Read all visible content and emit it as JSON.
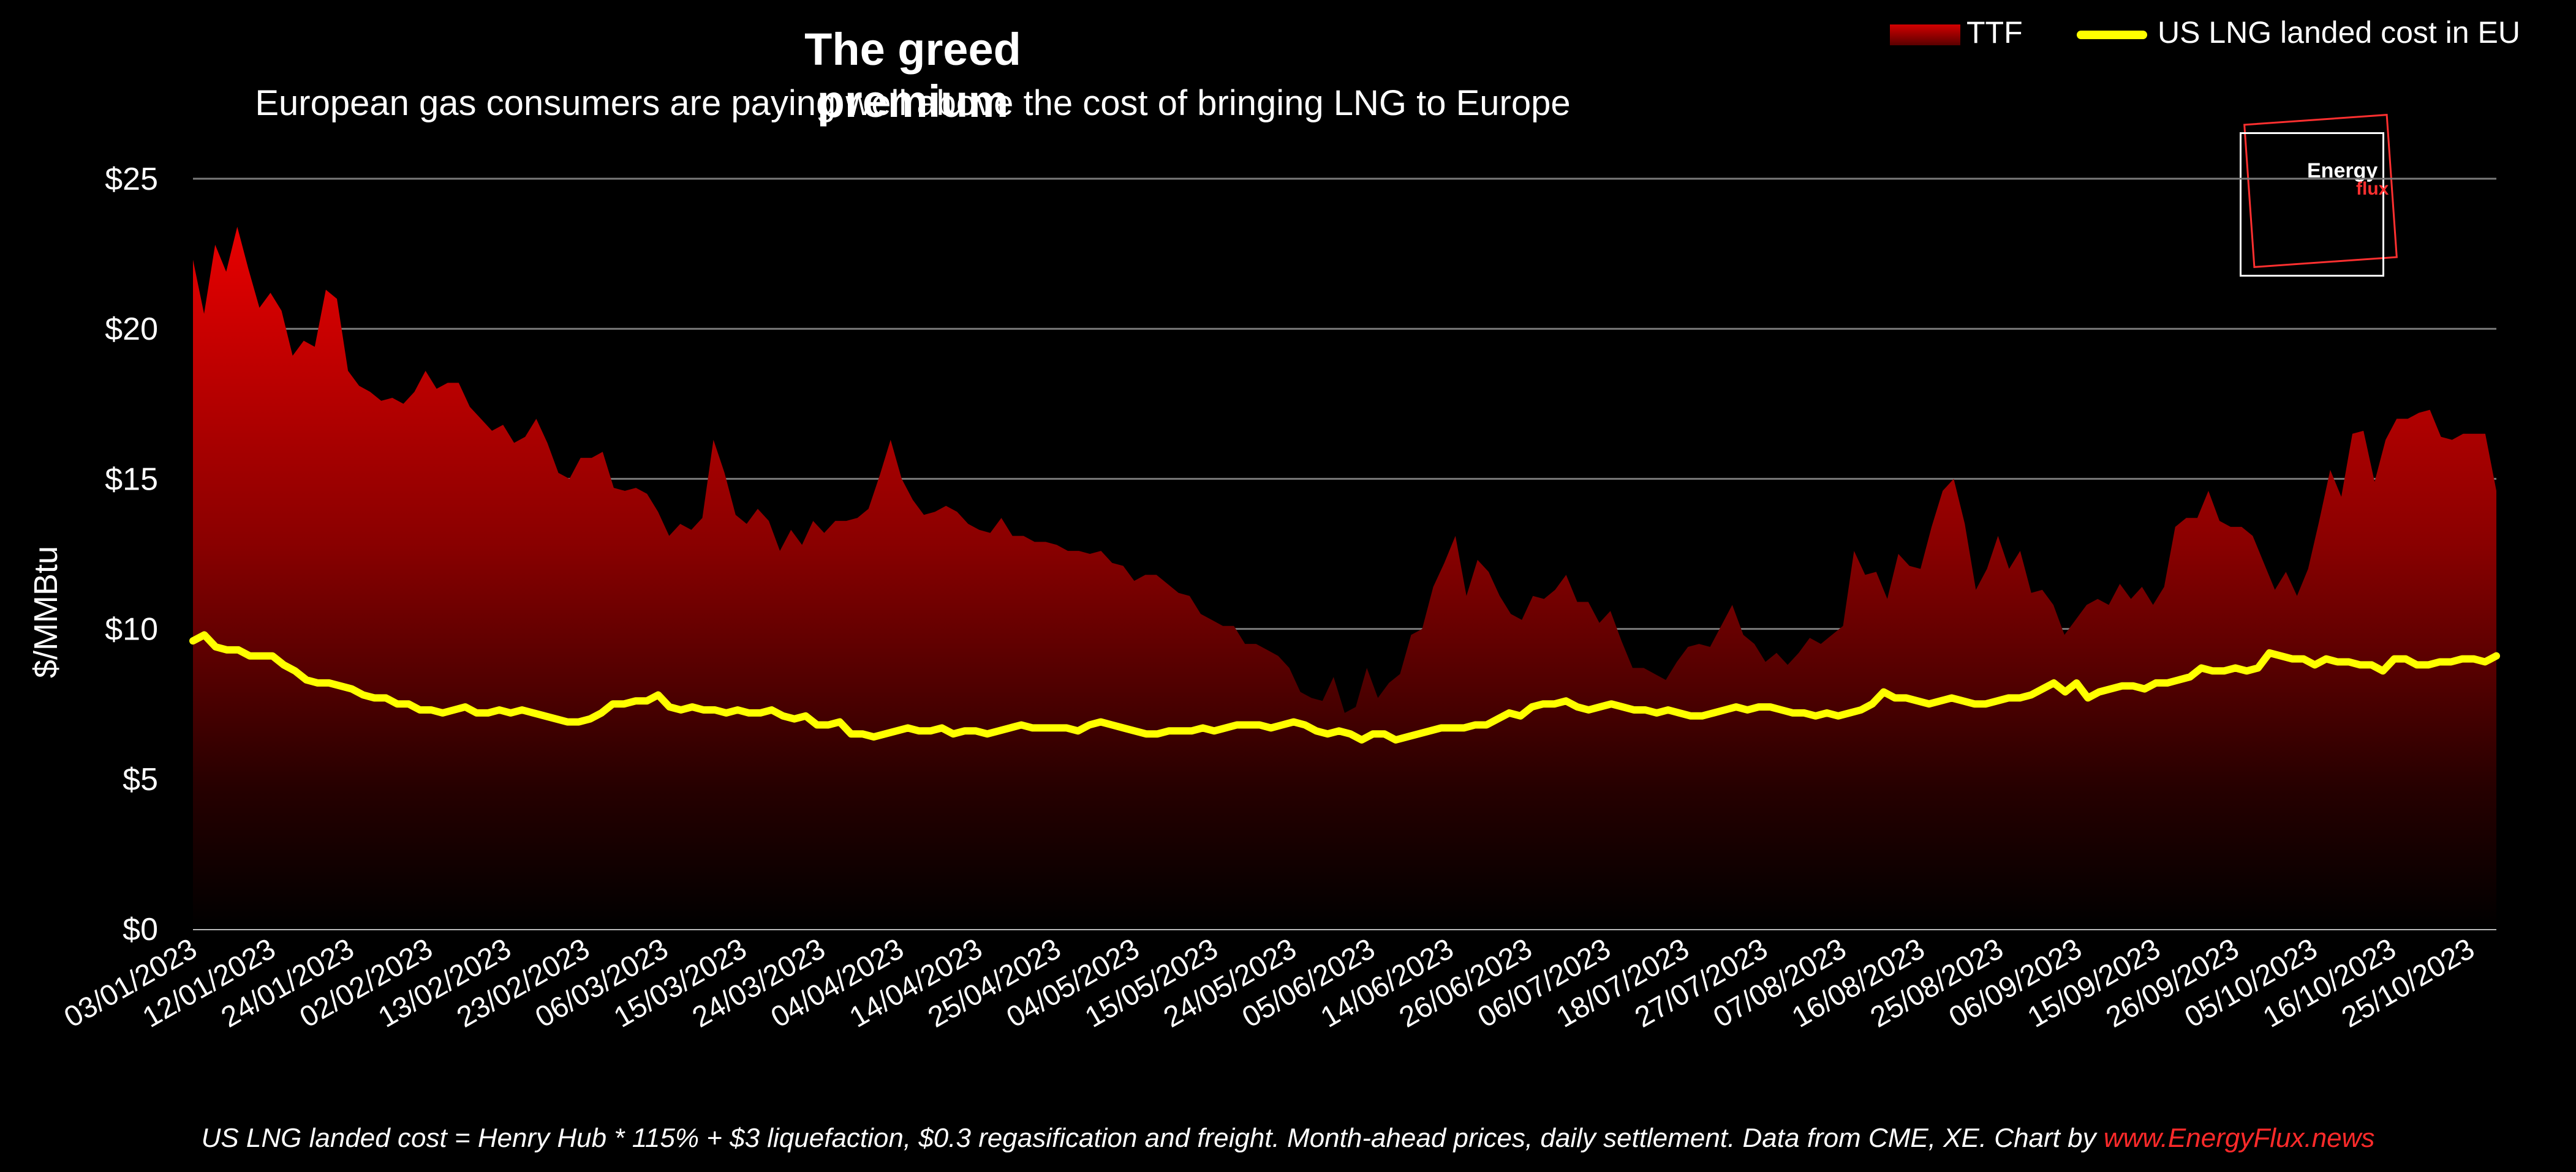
{
  "chart_data": {
    "type": "area",
    "title": "The greed premium",
    "subtitle": "European gas consumers are paying well above the cost of bringing LNG to Europe",
    "ylabel": "$/MMBtu",
    "xlabel": "",
    "ylim": [
      0,
      25
    ],
    "yticks": [
      0,
      5,
      10,
      15,
      20,
      25
    ],
    "ytick_labels": [
      "$0",
      "$5",
      "$10",
      "$15",
      "$20",
      "$25"
    ],
    "grid": true,
    "legend_position": "top-right",
    "x_tick_labels": [
      "03/01/2023",
      "12/01/2023",
      "24/01/2023",
      "02/02/2023",
      "13/02/2023",
      "23/02/2023",
      "06/03/2023",
      "15/03/2023",
      "24/03/2023",
      "04/04/2023",
      "14/04/2023",
      "25/04/2023",
      "04/05/2023",
      "15/05/2023",
      "24/05/2023",
      "05/06/2023",
      "14/06/2023",
      "26/06/2023",
      "06/07/2023",
      "18/07/2023",
      "27/07/2023",
      "07/08/2023",
      "16/08/2023",
      "25/08/2023",
      "06/09/2023",
      "15/09/2023",
      "26/09/2023",
      "05/10/2023",
      "16/10/2023",
      "25/10/2023"
    ],
    "series": [
      {
        "name": "TTF",
        "style": "area",
        "color_top": "#e00000",
        "color_bottom": "#000000",
        "values": [
          22.3,
          20.5,
          22.8,
          21.9,
          23.4,
          22.0,
          20.7,
          21.2,
          20.6,
          19.1,
          19.6,
          19.4,
          21.3,
          21.0,
          18.6,
          18.1,
          17.9,
          17.6,
          17.7,
          17.5,
          17.9,
          18.6,
          18.0,
          18.2,
          18.2,
          17.4,
          17.0,
          16.6,
          16.8,
          16.2,
          16.4,
          17.0,
          16.2,
          15.2,
          15.0,
          15.7,
          15.7,
          15.9,
          14.7,
          14.6,
          14.7,
          14.5,
          13.9,
          13.1,
          13.5,
          13.3,
          13.7,
          16.3,
          15.2,
          13.8,
          13.5,
          14.0,
          13.6,
          12.6,
          13.3,
          12.8,
          13.6,
          13.2,
          13.6,
          13.6,
          13.7,
          14.0,
          15.1,
          16.3,
          15.0,
          14.3,
          13.8,
          13.9,
          14.1,
          13.9,
          13.5,
          13.3,
          13.2,
          13.7,
          13.1,
          13.1,
          12.9,
          12.9,
          12.8,
          12.6,
          12.6,
          12.5,
          12.6,
          12.2,
          12.1,
          11.6,
          11.8,
          11.8,
          11.5,
          11.2,
          11.1,
          10.5,
          10.3,
          10.1,
          10.1,
          9.5,
          9.5,
          9.3,
          9.1,
          8.7,
          7.9,
          7.7,
          7.6,
          8.4,
          7.2,
          7.4,
          8.7,
          7.7,
          8.2,
          8.5,
          9.8,
          10.0,
          11.4,
          12.2,
          13.1,
          11.1,
          12.3,
          11.9,
          11.1,
          10.5,
          10.3,
          11.1,
          11.0,
          11.3,
          11.8,
          10.9,
          10.9,
          10.2,
          10.6,
          9.6,
          8.7,
          8.7,
          8.5,
          8.3,
          8.9,
          9.4,
          9.5,
          9.4,
          10.1,
          10.8,
          9.8,
          9.5,
          8.9,
          9.2,
          8.8,
          9.2,
          9.7,
          9.5,
          9.8,
          10.1,
          12.6,
          11.8,
          11.9,
          11.0,
          12.5,
          12.1,
          12.0,
          13.4,
          14.6,
          15.0,
          13.5,
          11.3,
          12.0,
          13.1,
          12.0,
          12.6,
          11.2,
          11.3,
          10.8,
          9.8,
          10.3,
          10.8,
          11.0,
          10.8,
          11.5,
          11.0,
          11.4,
          10.8,
          11.4,
          13.4,
          13.7,
          13.7,
          14.6,
          13.6,
          13.4,
          13.4,
          13.1,
          12.2,
          11.3,
          11.9,
          11.1,
          12.0,
          13.6,
          15.3,
          14.4,
          16.5,
          16.6,
          14.9,
          16.3,
          17.0,
          17.0,
          17.2,
          17.3,
          16.4,
          16.3,
          16.5,
          16.5,
          16.5,
          14.6
        ]
      },
      {
        "name": "US LNG landed cost in EU",
        "style": "line",
        "color": "#ffff00",
        "values": [
          9.6,
          9.8,
          9.4,
          9.3,
          9.3,
          9.1,
          9.1,
          9.1,
          8.8,
          8.6,
          8.3,
          8.2,
          8.2,
          8.1,
          8.0,
          7.8,
          7.7,
          7.7,
          7.5,
          7.5,
          7.3,
          7.3,
          7.2,
          7.3,
          7.4,
          7.2,
          7.2,
          7.3,
          7.2,
          7.3,
          7.2,
          7.1,
          7.0,
          6.9,
          6.9,
          7.0,
          7.2,
          7.5,
          7.5,
          7.6,
          7.6,
          7.8,
          7.4,
          7.3,
          7.4,
          7.3,
          7.3,
          7.2,
          7.3,
          7.2,
          7.2,
          7.3,
          7.1,
          7.0,
          7.1,
          6.8,
          6.8,
          6.9,
          6.5,
          6.5,
          6.4,
          6.5,
          6.6,
          6.7,
          6.6,
          6.6,
          6.7,
          6.5,
          6.6,
          6.6,
          6.5,
          6.6,
          6.7,
          6.8,
          6.7,
          6.7,
          6.7,
          6.7,
          6.6,
          6.8,
          6.9,
          6.8,
          6.7,
          6.6,
          6.5,
          6.5,
          6.6,
          6.6,
          6.6,
          6.7,
          6.6,
          6.7,
          6.8,
          6.8,
          6.8,
          6.7,
          6.8,
          6.9,
          6.8,
          6.6,
          6.5,
          6.6,
          6.5,
          6.3,
          6.5,
          6.5,
          6.3,
          6.4,
          6.5,
          6.6,
          6.7,
          6.7,
          6.7,
          6.8,
          6.8,
          7.0,
          7.2,
          7.1,
          7.4,
          7.5,
          7.5,
          7.6,
          7.4,
          7.3,
          7.4,
          7.5,
          7.4,
          7.3,
          7.3,
          7.2,
          7.3,
          7.2,
          7.1,
          7.1,
          7.2,
          7.3,
          7.4,
          7.3,
          7.4,
          7.4,
          7.3,
          7.2,
          7.2,
          7.1,
          7.2,
          7.1,
          7.2,
          7.3,
          7.5,
          7.9,
          7.7,
          7.7,
          7.6,
          7.5,
          7.6,
          7.7,
          7.6,
          7.5,
          7.5,
          7.6,
          7.7,
          7.7,
          7.8,
          8.0,
          8.2,
          7.9,
          8.2,
          7.7,
          7.9,
          8.0,
          8.1,
          8.1,
          8.0,
          8.2,
          8.2,
          8.3,
          8.4,
          8.7,
          8.6,
          8.6,
          8.7,
          8.6,
          8.7,
          9.2,
          9.1,
          9.0,
          9.0,
          8.8,
          9.0,
          8.9,
          8.9,
          8.8,
          8.8,
          8.6,
          9.0,
          9.0,
          8.8,
          8.8,
          8.9,
          8.9,
          9.0,
          9.0,
          8.9,
          9.1
        ]
      }
    ]
  },
  "legend": {
    "ttf_label": "TTF",
    "lng_label": "US LNG landed cost in EU"
  },
  "logo": {
    "line1": "Energy",
    "line2": "flux"
  },
  "footnote": {
    "text": "US LNG landed cost = Henry Hub * 115% + $3 liquefaction, $0.3 regasification and freight. Month-ahead prices, daily settlement. Data from CME, XE. Chart by ",
    "link": "www.EnergyFlux.news"
  }
}
